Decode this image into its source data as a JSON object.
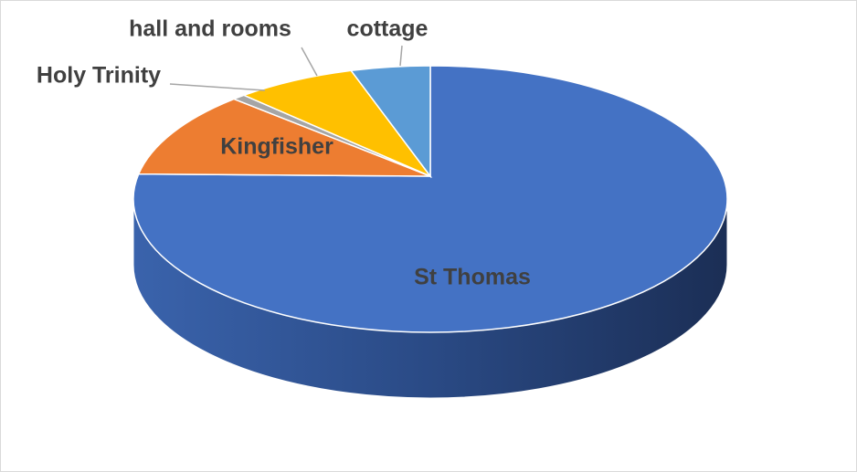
{
  "chart_data": {
    "type": "pie",
    "categories": [
      "St Thomas",
      "Kingfisher",
      "Holy Trinity",
      "hall and rooms",
      "cottage"
    ],
    "values": [
      78,
      10.5,
      0.7,
      6.5,
      4.3
    ],
    "colors": [
      "#4472c4",
      "#ed7d31",
      "#a5a5a5",
      "#ffc000",
      "#5b9bd5"
    ]
  }
}
